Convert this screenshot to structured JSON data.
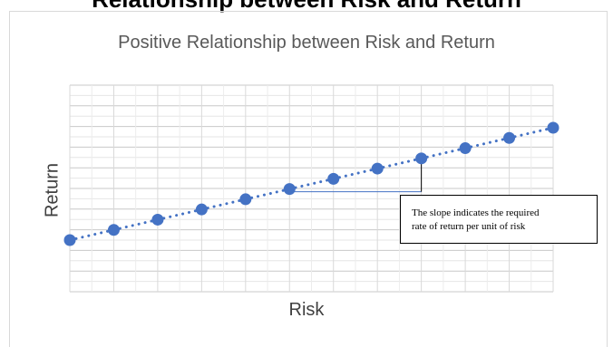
{
  "header_text": "Relationship between Risk and Return",
  "chart_data": {
    "type": "scatter",
    "title": "Positive Relationship between Risk and Return",
    "xlabel": "Risk",
    "ylabel": "Return",
    "x": [
      1,
      2,
      3,
      4,
      5,
      6,
      7,
      8,
      9,
      10,
      11,
      12
    ],
    "y": [
      1,
      2,
      3,
      4,
      5,
      6,
      7,
      8,
      9,
      10,
      11,
      12
    ],
    "trendline": "linear-dotted",
    "grid": true,
    "legend": "none",
    "colors": {
      "marker": "#4472C4",
      "trendline": "#4472C4",
      "slope_indicator": "#4472C4",
      "grid": "#d9d9d9"
    },
    "annotation": {
      "line1": "The slope indicates the required",
      "line2": "rate of return per unit of risk"
    }
  }
}
